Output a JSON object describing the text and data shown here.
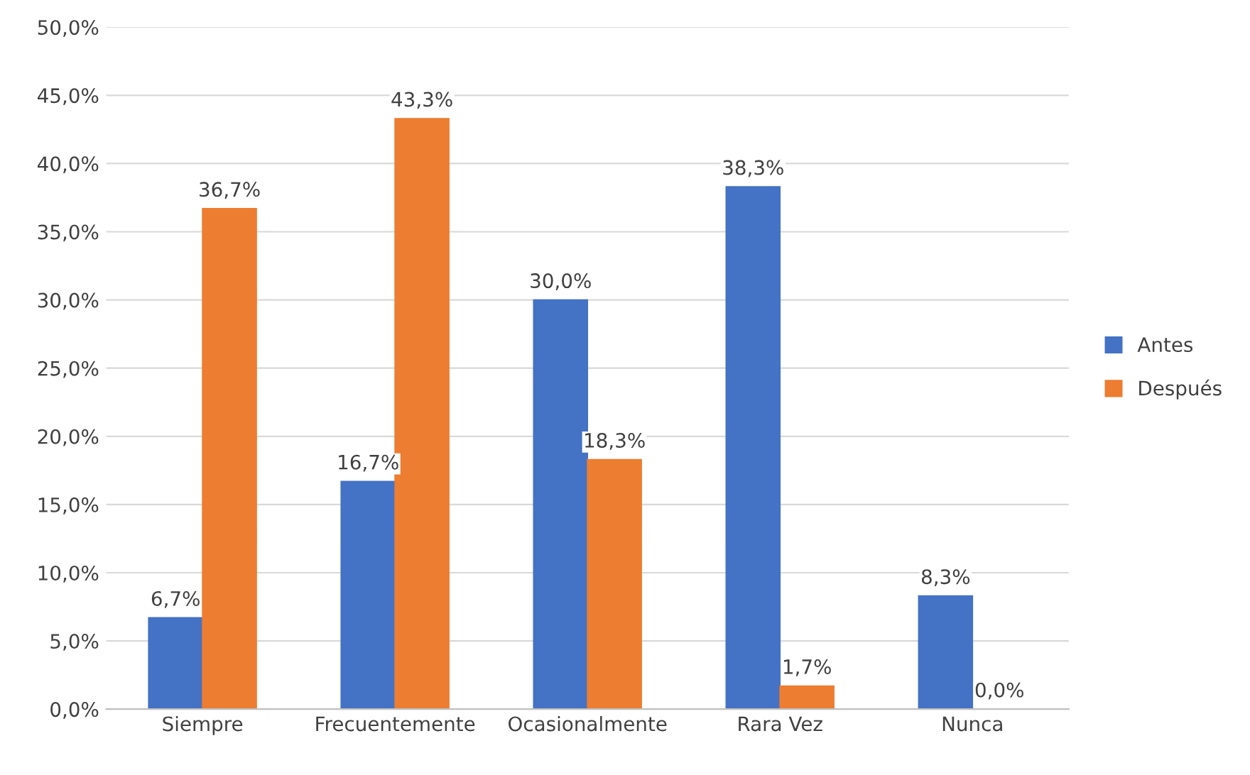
{
  "chart_data": {
    "type": "bar",
    "categories": [
      "Siempre",
      "Frecuentemente",
      "Ocasionalmente",
      "Rara Vez",
      "Nunca"
    ],
    "series": [
      {
        "name": "Antes",
        "color": "#4472c4",
        "values": [
          6.7,
          16.7,
          30.0,
          38.3,
          8.3
        ],
        "value_labels": [
          "6,7%",
          "16,7%",
          "30,0%",
          "38,3%",
          "8,3%"
        ]
      },
      {
        "name": "Después",
        "color": "#ed7d31",
        "values": [
          36.7,
          43.3,
          18.3,
          1.7,
          0.0
        ],
        "value_labels": [
          "36,7%",
          "43,3%",
          "18,3%",
          "1,7%",
          "0,0%"
        ]
      }
    ],
    "ylim": [
      0,
      50
    ],
    "yticks": [
      {
        "value": 0,
        "label": "0,0%"
      },
      {
        "value": 5,
        "label": "5,0%"
      },
      {
        "value": 10,
        "label": "10,0%"
      },
      {
        "value": 15,
        "label": "15,0%"
      },
      {
        "value": 20,
        "label": "20,0%"
      },
      {
        "value": 25,
        "label": "25,0%"
      },
      {
        "value": 30,
        "label": "30,0%"
      },
      {
        "value": 35,
        "label": "35,0%"
      },
      {
        "value": 40,
        "label": "40,0%"
      },
      {
        "value": 45,
        "label": "45,0%"
      },
      {
        "value": 50,
        "label": "50,0%"
      }
    ],
    "grid": "y",
    "legend": "right"
  }
}
